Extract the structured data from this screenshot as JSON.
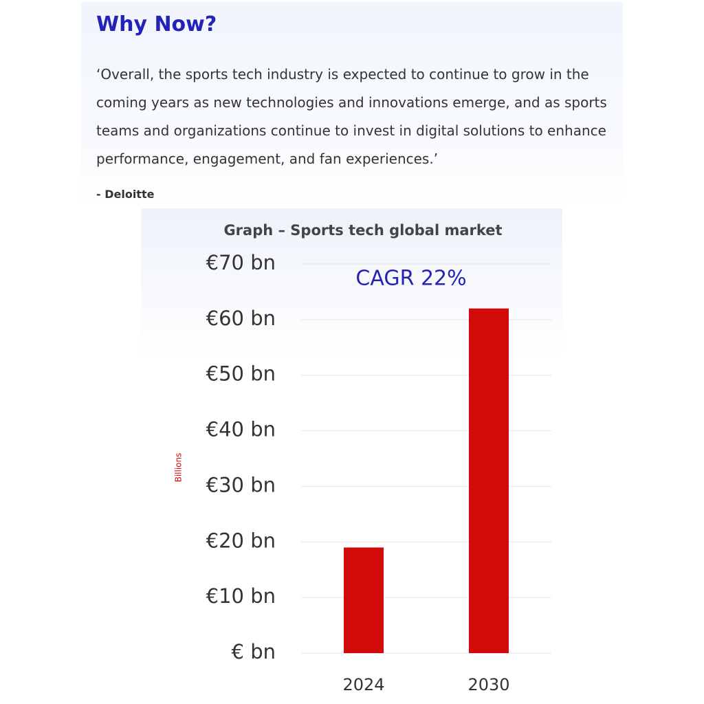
{
  "header": {
    "title": "Why Now?"
  },
  "quote": {
    "text": "‘Overall, the sports tech industry is expected to continue to grow in the coming years as new technologies and innovations emerge, and as sports teams and organizations continue to invest in digital solutions to enhance performance, engagement, and fan experiences.’",
    "attribution": "- Deloitte"
  },
  "chart_data": {
    "type": "bar",
    "title": "Graph – Sports tech global market",
    "y_label": "Billions",
    "annotation": "CAGR 22%",
    "categories": [
      "2024",
      "2030"
    ],
    "values": [
      19,
      62
    ],
    "color": "#d10a0a",
    "ylim": [
      0,
      70
    ],
    "yticks": [
      {
        "value": 0,
        "label": "€ bn"
      },
      {
        "value": 10,
        "label": "€10 bn"
      },
      {
        "value": 20,
        "label": "€20 bn"
      },
      {
        "value": 30,
        "label": "€30 bn"
      },
      {
        "value": 40,
        "label": "€40 bn"
      },
      {
        "value": 50,
        "label": "€50 bn"
      },
      {
        "value": 60,
        "label": "€60 bn"
      },
      {
        "value": 70,
        "label": "€70 bn"
      }
    ],
    "grid": true
  }
}
